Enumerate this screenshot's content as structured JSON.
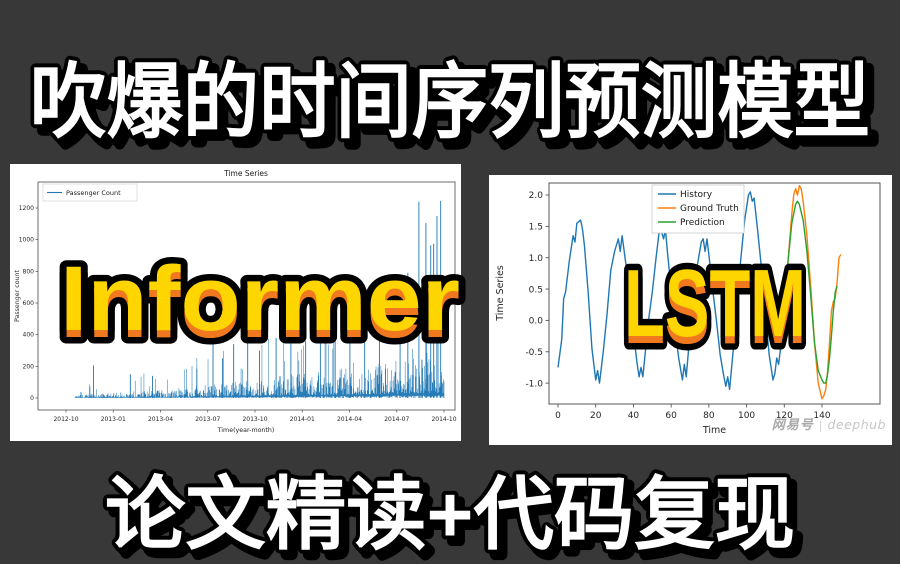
{
  "page": {
    "background": "#383838"
  },
  "banner_top": {
    "text": "吹爆的时间序列预测模型",
    "fill": "#ffffff",
    "outline": "#000000"
  },
  "banner_bottom": {
    "text": "论文精读+代码复现",
    "fill": "#ffffff",
    "outline": "#000000"
  },
  "overlays": {
    "left": {
      "text": "Informer",
      "fill": "#ffd500",
      "extrude": "#f0781e",
      "outline": "#000000"
    },
    "right": {
      "text": "LSTM",
      "fill": "#ffd500",
      "extrude": "#f0781e",
      "outline": "#000000"
    }
  },
  "watermark": {
    "account": "网易号",
    "separator": "|",
    "brand": "deephub"
  },
  "chart_data": [
    {
      "type": "line",
      "title": "Time Series",
      "xlabel": "Time(year-month)",
      "ylabel": "Passenger count",
      "legend": [
        {
          "label": "Passenger Count",
          "color": "#1f77b4"
        }
      ],
      "legend_position": "upper-left",
      "x_ticks": [
        "2012-10",
        "2013-01",
        "2013-04",
        "2013-07",
        "2013-10",
        "2014-01",
        "2014-04",
        "2014-07",
        "2014-10"
      ],
      "y_ticks": [
        0,
        200,
        400,
        600,
        800,
        1000,
        1200
      ],
      "ylim": [
        -60,
        1320
      ],
      "series_color": "#1f77b4",
      "description": "dense spiky daily passenger-count series; baseline and spike variance grow over time",
      "base_envelope": [
        [
          0,
          10
        ],
        [
          0.1,
          18
        ],
        [
          0.2,
          26
        ],
        [
          0.3,
          38
        ],
        [
          0.4,
          52
        ],
        [
          0.5,
          68
        ],
        [
          0.6,
          85
        ],
        [
          0.7,
          100
        ],
        [
          0.8,
          118
        ],
        [
          0.9,
          140
        ],
        [
          1,
          155
        ]
      ],
      "spike_envelope": [
        [
          0,
          55
        ],
        [
          0.1,
          140
        ],
        [
          0.2,
          160
        ],
        [
          0.3,
          260
        ],
        [
          0.4,
          330
        ],
        [
          0.5,
          380
        ],
        [
          0.6,
          400
        ],
        [
          0.7,
          420
        ],
        [
          0.8,
          430
        ],
        [
          0.9,
          500
        ],
        [
          1,
          560
        ]
      ],
      "major_spikes": [
        [
          0.05,
          205
        ],
        [
          0.15,
          150
        ],
        [
          0.21,
          140
        ],
        [
          0.33,
          185
        ],
        [
          0.374,
          420
        ],
        [
          0.4,
          250
        ],
        [
          0.43,
          340
        ],
        [
          0.468,
          740
        ],
        [
          0.5,
          300
        ],
        [
          0.545,
          380
        ],
        [
          0.585,
          420
        ],
        [
          0.625,
          360
        ],
        [
          0.665,
          400
        ],
        [
          0.705,
          380
        ],
        [
          0.745,
          450
        ],
        [
          0.785,
          420
        ],
        [
          0.825,
          470
        ],
        [
          0.881,
          560
        ],
        [
          0.902,
          790
        ],
        [
          0.932,
          1240
        ],
        [
          0.951,
          1105
        ],
        [
          0.964,
          965
        ],
        [
          0.972,
          975
        ],
        [
          0.981,
          1150
        ],
        [
          0.991,
          1245
        ]
      ]
    },
    {
      "type": "line",
      "title": "",
      "xlabel": "Time",
      "ylabel": "Time Series",
      "x_ticks": [
        0,
        20,
        40,
        60,
        80,
        100,
        120,
        140
      ],
      "y_ticks": [
        2.0,
        1.5,
        1.0,
        0.5,
        0.0,
        -0.5,
        -1.0
      ],
      "xlim": [
        -5,
        171
      ],
      "ylim": [
        -1.35,
        2.3
      ],
      "legend_position": "upper-center",
      "series": [
        {
          "name": "History",
          "color": "#1f77b4",
          "points": [
            [
              0,
              -0.75
            ],
            [
              2,
              -0.3
            ],
            [
              3,
              0.35
            ],
            [
              4,
              0.45
            ],
            [
              6,
              0.95
            ],
            [
              8,
              1.35
            ],
            [
              9,
              1.25
            ],
            [
              10,
              1.55
            ],
            [
              12,
              1.6
            ],
            [
              13,
              1.45
            ],
            [
              14,
              1.2
            ],
            [
              16,
              0.45
            ],
            [
              18,
              -0.45
            ],
            [
              20,
              -0.95
            ],
            [
              21,
              -0.8
            ],
            [
              22,
              -1.0
            ],
            [
              24,
              -0.5
            ],
            [
              26,
              0.1
            ],
            [
              28,
              0.8
            ],
            [
              30,
              1.1
            ],
            [
              32,
              1.3
            ],
            [
              33,
              1.1
            ],
            [
              34,
              1.35
            ],
            [
              36,
              0.9
            ],
            [
              38,
              0.4
            ],
            [
              40,
              -0.2
            ],
            [
              42,
              -0.7
            ],
            [
              43,
              -0.9
            ],
            [
              44,
              -0.75
            ],
            [
              45,
              -0.9
            ],
            [
              46,
              -0.6
            ],
            [
              48,
              0.0
            ],
            [
              50,
              0.45
            ],
            [
              52,
              1.0
            ],
            [
              54,
              1.5
            ],
            [
              55,
              1.4
            ],
            [
              56,
              1.3
            ],
            [
              57,
              1.45
            ],
            [
              58,
              1.1
            ],
            [
              60,
              0.5
            ],
            [
              62,
              -0.1
            ],
            [
              64,
              -0.6
            ],
            [
              66,
              -0.95
            ],
            [
              67,
              -0.7
            ],
            [
              68,
              -0.9
            ],
            [
              70,
              -0.2
            ],
            [
              72,
              0.4
            ],
            [
              74,
              0.9
            ],
            [
              76,
              1.25
            ],
            [
              77,
              1.3
            ],
            [
              78,
              1.1
            ],
            [
              79,
              1.3
            ],
            [
              80,
              1.05
            ],
            [
              82,
              0.5
            ],
            [
              84,
              0.0
            ],
            [
              86,
              -0.55
            ],
            [
              88,
              -0.9
            ],
            [
              89,
              -1.05
            ],
            [
              90,
              -0.9
            ],
            [
              91,
              -1.1
            ],
            [
              93,
              -0.45
            ],
            [
              95,
              0.3
            ],
            [
              97,
              1.0
            ],
            [
              99,
              1.6
            ],
            [
              101,
              2.0
            ],
            [
              102,
              2.05
            ],
            [
              103,
              1.9
            ],
            [
              104,
              1.95
            ],
            [
              106,
              1.4
            ],
            [
              108,
              0.8
            ],
            [
              110,
              0.1
            ],
            [
              112,
              -0.55
            ],
            [
              114,
              -0.95
            ],
            [
              115,
              -0.85
            ],
            [
              116,
              -0.6
            ],
            [
              117,
              -0.7
            ],
            [
              118,
              -0.45
            ]
          ]
        },
        {
          "name": "Ground Truth",
          "color": "#ff7f0e",
          "points": [
            [
              118,
              -0.45
            ],
            [
              120,
              0.15
            ],
            [
              122,
              0.95
            ],
            [
              124,
              1.7
            ],
            [
              125,
              2.0
            ],
            [
              126,
              2.1
            ],
            [
              127,
              2.0
            ],
            [
              128,
              2.15
            ],
            [
              129,
              2.1
            ],
            [
              130,
              1.9
            ],
            [
              132,
              1.35
            ],
            [
              134,
              0.55
            ],
            [
              136,
              -0.35
            ],
            [
              138,
              -1.0
            ],
            [
              140,
              -1.25
            ],
            [
              141,
              -1.2
            ],
            [
              142,
              -1.1
            ],
            [
              143,
              -0.8
            ],
            [
              144,
              -0.35
            ],
            [
              145,
              0.15
            ],
            [
              146,
              0.3
            ],
            [
              147,
              0.35
            ],
            [
              148,
              0.6
            ],
            [
              149,
              1.0
            ],
            [
              150,
              1.05
            ]
          ]
        },
        {
          "name": "Prediction",
          "color": "#2ca02c",
          "points": [
            [
              118,
              -0.35
            ],
            [
              120,
              0.25
            ],
            [
              122,
              0.95
            ],
            [
              124,
              1.55
            ],
            [
              126,
              1.85
            ],
            [
              127,
              1.9
            ],
            [
              128,
              1.85
            ],
            [
              130,
              1.6
            ],
            [
              132,
              1.1
            ],
            [
              134,
              0.4
            ],
            [
              136,
              -0.35
            ],
            [
              138,
              -0.8
            ],
            [
              140,
              -0.95
            ],
            [
              141,
              -1.0
            ],
            [
              142,
              -1.0
            ],
            [
              143,
              -0.85
            ],
            [
              144,
              -0.6
            ],
            [
              145,
              -0.25
            ],
            [
              146,
              0.15
            ],
            [
              147,
              0.45
            ],
            [
              148,
              0.55
            ]
          ]
        }
      ]
    }
  ]
}
